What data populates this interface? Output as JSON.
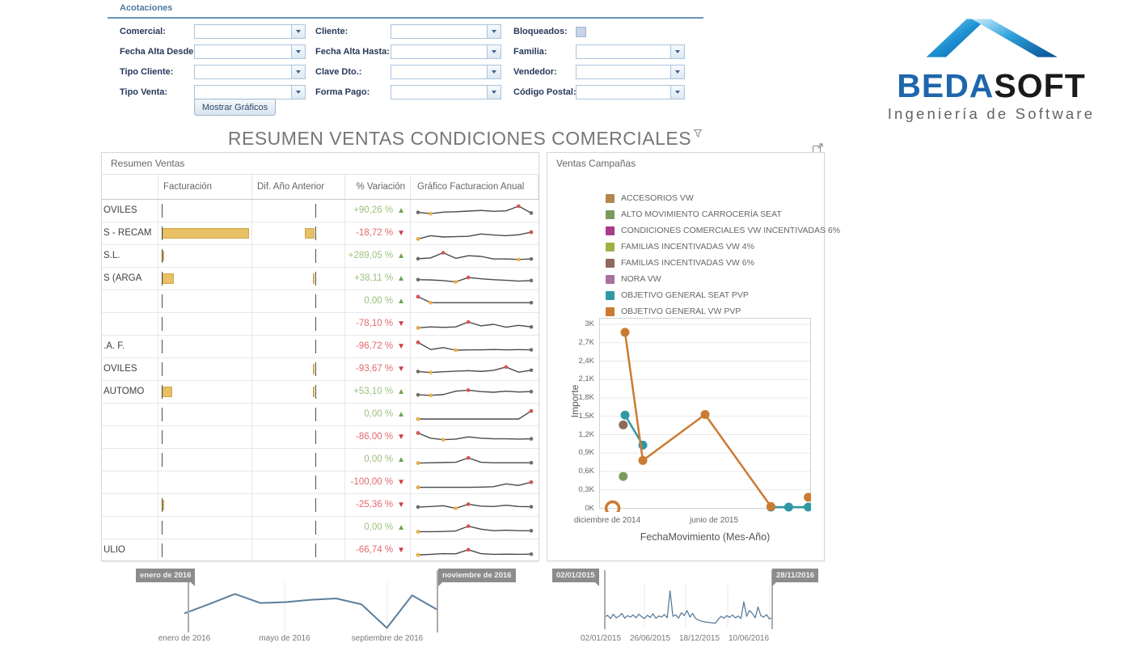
{
  "filters": {
    "title": "Acotaciones",
    "button_label": "Mostrar Gráficos",
    "fields": [
      {
        "label": "Comercial:",
        "slug": "comercial",
        "type": "combo"
      },
      {
        "label": "Cliente:",
        "slug": "cliente",
        "type": "combo"
      },
      {
        "label": "Bloqueados:",
        "slug": "bloqueados",
        "type": "checkbox"
      },
      {
        "label": "Fecha Alta Desde:",
        "slug": "fecha-alta-desde",
        "type": "combo"
      },
      {
        "label": "Fecha Alta Hasta:",
        "slug": "fecha-alta-hasta",
        "type": "combo"
      },
      {
        "label": "Familia:",
        "slug": "familia",
        "type": "combo"
      },
      {
        "label": "Tipo Cliente:",
        "slug": "tipo-cliente",
        "type": "combo"
      },
      {
        "label": "Clave Dto.:",
        "slug": "clave-dto",
        "type": "combo"
      },
      {
        "label": "Vendedor:",
        "slug": "vendedor",
        "type": "combo"
      },
      {
        "label": "Tipo Venta:",
        "slug": "tipo-venta",
        "type": "combo"
      },
      {
        "label": "Forma Pago:",
        "slug": "forma-pago",
        "type": "combo"
      },
      {
        "label": "Código Postal:",
        "slug": "codigo-postal",
        "type": "combo"
      }
    ]
  },
  "logo": {
    "brand_primary": "BEDA",
    "brand_secondary": "SOFT",
    "tagline": "Ingeniería de Software"
  },
  "page_title": "RESUMEN VENTAS CONDICIONES COMERCIALES",
  "style": {
    "bar_fill": "#E8C167",
    "bar_border": "#D2A74B",
    "spark_line": "#4A4A4A",
    "spark_end": "#6E6E6E",
    "spark_max": "#D9534F",
    "spark_min": "#E9B04A",
    "up_color": "#6EA350",
    "down_color": "#CE3C49",
    "timeline_line": "#5B7E9C",
    "grid_line": "#E7E7E7",
    "plot_border": "#D2D2D2"
  },
  "resumen_ventas": {
    "panel_title": "Resumen Ventas",
    "columns": [
      "",
      "Facturación",
      "Dif. Año Anterior",
      "% Variación",
      "Gráfico Facturacion Anual"
    ],
    "rows": [
      {
        "name": "OVILES",
        "fact_bar": 0,
        "dif_bar": 0,
        "variacion": "+90,26 %",
        "dir": "up",
        "spark": [
          0.4,
          0.3,
          0.42,
          0.45,
          0.5,
          0.55,
          0.48,
          0.52,
          0.88,
          0.35
        ]
      },
      {
        "name": "S - RECAM",
        "fact_bar": 93,
        "dif_bar": 10,
        "variacion": "-18,72 %",
        "dir": "down",
        "spark": [
          0.1,
          0.35,
          0.25,
          0.28,
          0.3,
          0.48,
          0.4,
          0.35,
          0.42,
          0.62
        ]
      },
      {
        "name": "S.L.",
        "fact_bar": 2,
        "dif_bar": 0,
        "variacion": "+289,05 %",
        "dir": "up",
        "spark": [
          0.32,
          0.38,
          0.78,
          0.35,
          0.55,
          0.5,
          0.3,
          0.3,
          0.26,
          0.3
        ]
      },
      {
        "name": "S (ARGA",
        "fact_bar": 12,
        "dif_bar": 1,
        "variacion": "+38,11 %",
        "dir": "up",
        "spark": [
          0.45,
          0.43,
          0.38,
          0.28,
          0.62,
          0.52,
          0.45,
          0.4,
          0.34,
          0.38
        ]
      },
      {
        "name": "",
        "fact_bar": 0,
        "dif_bar": 0,
        "variacion": "0,00 %",
        "dir": "up",
        "spark": [
          0.88,
          0.42,
          0.42,
          0.42,
          0.42,
          0.42,
          0.42,
          0.42,
          0.42,
          0.42
        ]
      },
      {
        "name": "",
        "fact_bar": 0,
        "dif_bar": 0,
        "variacion": "-78,10 %",
        "dir": "down",
        "spark": [
          0.22,
          0.3,
          0.26,
          0.3,
          0.68,
          0.38,
          0.5,
          0.28,
          0.42,
          0.3
        ]
      },
      {
        "name": ".A. F.",
        "fact_bar": 0,
        "dif_bar": 0,
        "variacion": "-96,72 %",
        "dir": "down",
        "spark": [
          0.85,
          0.3,
          0.45,
          0.25,
          0.28,
          0.28,
          0.3,
          0.28,
          0.29,
          0.28
        ]
      },
      {
        "name": "OVILES",
        "fact_bar": 0,
        "dif_bar": 1,
        "variacion": "-93,67 %",
        "dir": "down",
        "spark": [
          0.35,
          0.28,
          0.33,
          0.38,
          0.42,
          0.36,
          0.44,
          0.7,
          0.3,
          0.45
        ]
      },
      {
        "name": "AUTOMO",
        "fact_bar": 10,
        "dif_bar": 1,
        "variacion": "+53,10 %",
        "dir": "up",
        "spark": [
          0.3,
          0.26,
          0.32,
          0.58,
          0.66,
          0.55,
          0.5,
          0.58,
          0.52,
          0.55
        ]
      },
      {
        "name": "",
        "fact_bar": 0,
        "dif_bar": 0,
        "variacion": "0,00 %",
        "dir": "up",
        "spark": [
          0.18,
          0.18,
          0.18,
          0.18,
          0.18,
          0.18,
          0.18,
          0.18,
          0.18,
          0.8
        ]
      },
      {
        "name": "",
        "fact_bar": 0,
        "dif_bar": 0,
        "variacion": "-86,00 %",
        "dir": "down",
        "spark": [
          0.85,
          0.45,
          0.33,
          0.38,
          0.55,
          0.45,
          0.4,
          0.4,
          0.38,
          0.4
        ]
      },
      {
        "name": "",
        "fact_bar": 0,
        "dif_bar": 0,
        "variacion": "0,00 %",
        "dir": "up",
        "spark": [
          0.28,
          0.3,
          0.32,
          0.34,
          0.68,
          0.34,
          0.3,
          0.3,
          0.3,
          0.3
        ]
      },
      {
        "name": "",
        "fact_bar": 0,
        "dif_bar": 0,
        "fact_axis": false,
        "variacion": "-100,00 %",
        "dir": "down",
        "spark": [
          0.15,
          0.15,
          0.15,
          0.15,
          0.15,
          0.17,
          0.2,
          0.42,
          0.3,
          0.55
        ]
      },
      {
        "name": "",
        "fact_bar": 2,
        "dif_bar": 0,
        "variacion": "-25,36 %",
        "dir": "down",
        "spark": [
          0.38,
          0.42,
          0.48,
          0.28,
          0.6,
          0.45,
          0.42,
          0.52,
          0.42,
          0.4
        ]
      },
      {
        "name": "",
        "fact_bar": 0,
        "dif_bar": 0,
        "variacion": "0,00 %",
        "dir": "up",
        "spark": [
          0.22,
          0.22,
          0.24,
          0.28,
          0.65,
          0.42,
          0.3,
          0.34,
          0.3,
          0.3
        ]
      },
      {
        "name": "ULIO",
        "fact_bar": 0,
        "dif_bar": 0,
        "variacion": "-66,74 %",
        "dir": "down",
        "spark": [
          0.18,
          0.22,
          0.28,
          0.26,
          0.58,
          0.28,
          0.22,
          0.24,
          0.22,
          0.24
        ]
      }
    ]
  },
  "ventas_campanas": {
    "panel_title": "Ventas Campañas",
    "legend": [
      {
        "label": "ACCESORIOS VW",
        "color": "#B3874B"
      },
      {
        "label": "ALTO MOVIMIENTO CARROCERÍA SEAT",
        "color": "#7B9A5E"
      },
      {
        "label": "CONDICIONES COMERCIALES VW INCENTIVADAS 6%",
        "color": "#A73C8B"
      },
      {
        "label": "FAMILIAS INCENTIVADAS VW 4%",
        "color": "#A2AF45"
      },
      {
        "label": "FAMILIAS INCENTIVADAS VW 6%",
        "color": "#8D6A5B"
      },
      {
        "label": "NORA VW",
        "color": "#A8719F"
      },
      {
        "label": "OBJETIVO GENERAL SEAT PVP",
        "color": "#2F99A3"
      },
      {
        "label": "OBJETIVO GENERAL VW PVP",
        "color": "#CB7B31"
      }
    ]
  },
  "chart_data": [
    {
      "type": "scatter",
      "title": "Ventas Campañas",
      "xlabel": "FechaMovimiento (Mes-Año)",
      "ylabel": "Importe",
      "x_unit": "month index, 0 = diciembre de 2014",
      "xlim": [
        -0.5,
        11.9
      ],
      "ylim": [
        0,
        3000
      ],
      "y_ticks": [
        "0K",
        "0,3K",
        "0,6K",
        "0,9K",
        "1,2K",
        "1,5K",
        "1,8K",
        "2,1K",
        "2,4K",
        "2,7K",
        "3K"
      ],
      "x_ticks": [
        {
          "pos": 0,
          "label": "diciembre de 2014"
        },
        {
          "pos": 6,
          "label": "junio de 2015"
        }
      ],
      "series": [
        {
          "name": "OBJETIVO GENERAL VW PVP",
          "color": "#CB7B31",
          "segments": [
            [
              [
                1,
                2870
              ],
              [
                2,
                780
              ],
              [
                5.5,
                1530
              ],
              [
                9.2,
                30
              ]
            ]
          ],
          "dots": [
            [
              11.3,
              180
            ]
          ],
          "rings": [
            [
              0.3,
              0
            ]
          ]
        },
        {
          "name": "OBJETIVO GENERAL SEAT PVP",
          "color": "#2F99A3",
          "segments": [
            [
              [
                1,
                1520
              ],
              [
                2,
                1030
              ]
            ],
            [
              [
                9.2,
                20
              ],
              [
                10.2,
                20
              ],
              [
                11.3,
                20
              ]
            ]
          ],
          "dots": [],
          "rings": []
        },
        {
          "name": "FAMILIAS INCENTIVADAS VW 6%",
          "color": "#8D6A5B",
          "segments": [],
          "dots": [
            [
              0.9,
              1360
            ]
          ],
          "rings": []
        },
        {
          "name": "ALTO MOVIMIENTO CARROCERÍA SEAT",
          "color": "#7B9A5E",
          "segments": [],
          "dots": [
            [
              0.9,
              520
            ]
          ],
          "rings": []
        }
      ]
    },
    {
      "type": "line",
      "role": "timeline-slider",
      "range_start": "enero de 2016",
      "range_end": "noviembre de 2016",
      "x_ticks": [
        "enero de 2016",
        "mayo de 2016",
        "septiembre de 2016"
      ],
      "values": [
        0.42,
        0.63,
        0.85,
        0.65,
        0.67,
        0.72,
        0.75,
        0.62,
        0.1,
        0.82,
        0.5
      ]
    },
    {
      "type": "line",
      "role": "timeline-slider",
      "range_start": "02/01/2015",
      "range_end": "28/11/2016",
      "x_ticks": [
        "02/01/2015",
        "26/06/2015",
        "18/12/2015",
        "10/06/2016"
      ],
      "values": [
        0.2,
        0.25,
        0.16,
        0.28,
        0.18,
        0.22,
        0.3,
        0.17,
        0.24,
        0.2,
        0.26,
        0.18,
        0.28,
        0.21,
        0.16,
        0.25,
        0.19,
        0.29,
        0.17,
        0.23,
        0.2,
        0.27,
        0.18,
        0.92,
        0.22,
        0.26,
        0.17,
        0.32,
        0.24,
        0.38,
        0.2,
        0.3,
        0.16,
        0.12,
        0.09,
        0.07,
        0.06,
        0.05,
        0.04,
        0.03,
        0.14,
        0.22,
        0.17,
        0.24,
        0.19,
        0.26,
        0.18,
        0.23,
        0.16,
        0.62,
        0.22,
        0.38,
        0.3,
        0.18,
        0.48,
        0.24,
        0.2,
        0.27,
        0.15,
        0.18
      ]
    }
  ]
}
